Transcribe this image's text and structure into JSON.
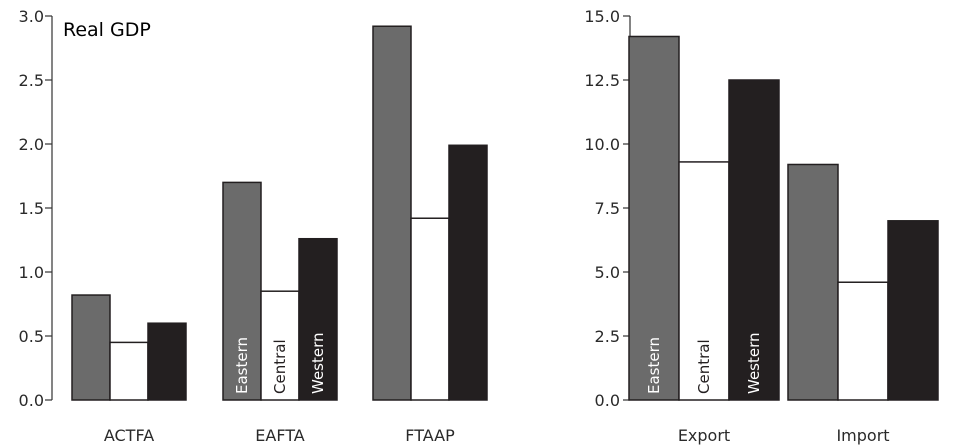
{
  "chart_data": [
    {
      "type": "bar",
      "title": "Real GDP",
      "categories": [
        "ACTFA",
        "EAFTA",
        "FTAAP"
      ],
      "series": [
        {
          "name": "Eastern",
          "values": [
            0.82,
            1.7,
            2.92
          ]
        },
        {
          "name": "Central",
          "values": [
            0.45,
            0.85,
            1.42
          ]
        },
        {
          "name": "Western",
          "values": [
            0.6,
            1.26,
            1.99
          ]
        }
      ],
      "ylim": [
        0,
        3.0
      ],
      "yticks": [
        "0.0",
        "0.5",
        "1.0",
        "1.5",
        "2.0",
        "2.5",
        "3.0"
      ],
      "series_labels_on_category": 1,
      "xlabel": "",
      "ylabel": "",
      "grid": false
    },
    {
      "type": "bar",
      "title": "",
      "categories": [
        "Export",
        "Import"
      ],
      "series": [
        {
          "name": "Eastern",
          "values": [
            14.2,
            9.2
          ]
        },
        {
          "name": "Central",
          "values": [
            9.3,
            4.6
          ]
        },
        {
          "name": "Western",
          "values": [
            12.5,
            7.0
          ]
        }
      ],
      "ylim": [
        0,
        15.0
      ],
      "yticks": [
        "0.0",
        "2.5",
        "5.0",
        "7.5",
        "10.0",
        "12.5",
        "15.0"
      ],
      "series_labels_on_category": 0,
      "xlabel": "",
      "ylabel": "",
      "grid": false
    }
  ],
  "colors": {
    "Eastern": "#6b6b6b",
    "Central": "#ffffff",
    "Western": "#231f20",
    "axis": "#333333",
    "bar_outline": "#231f20"
  }
}
